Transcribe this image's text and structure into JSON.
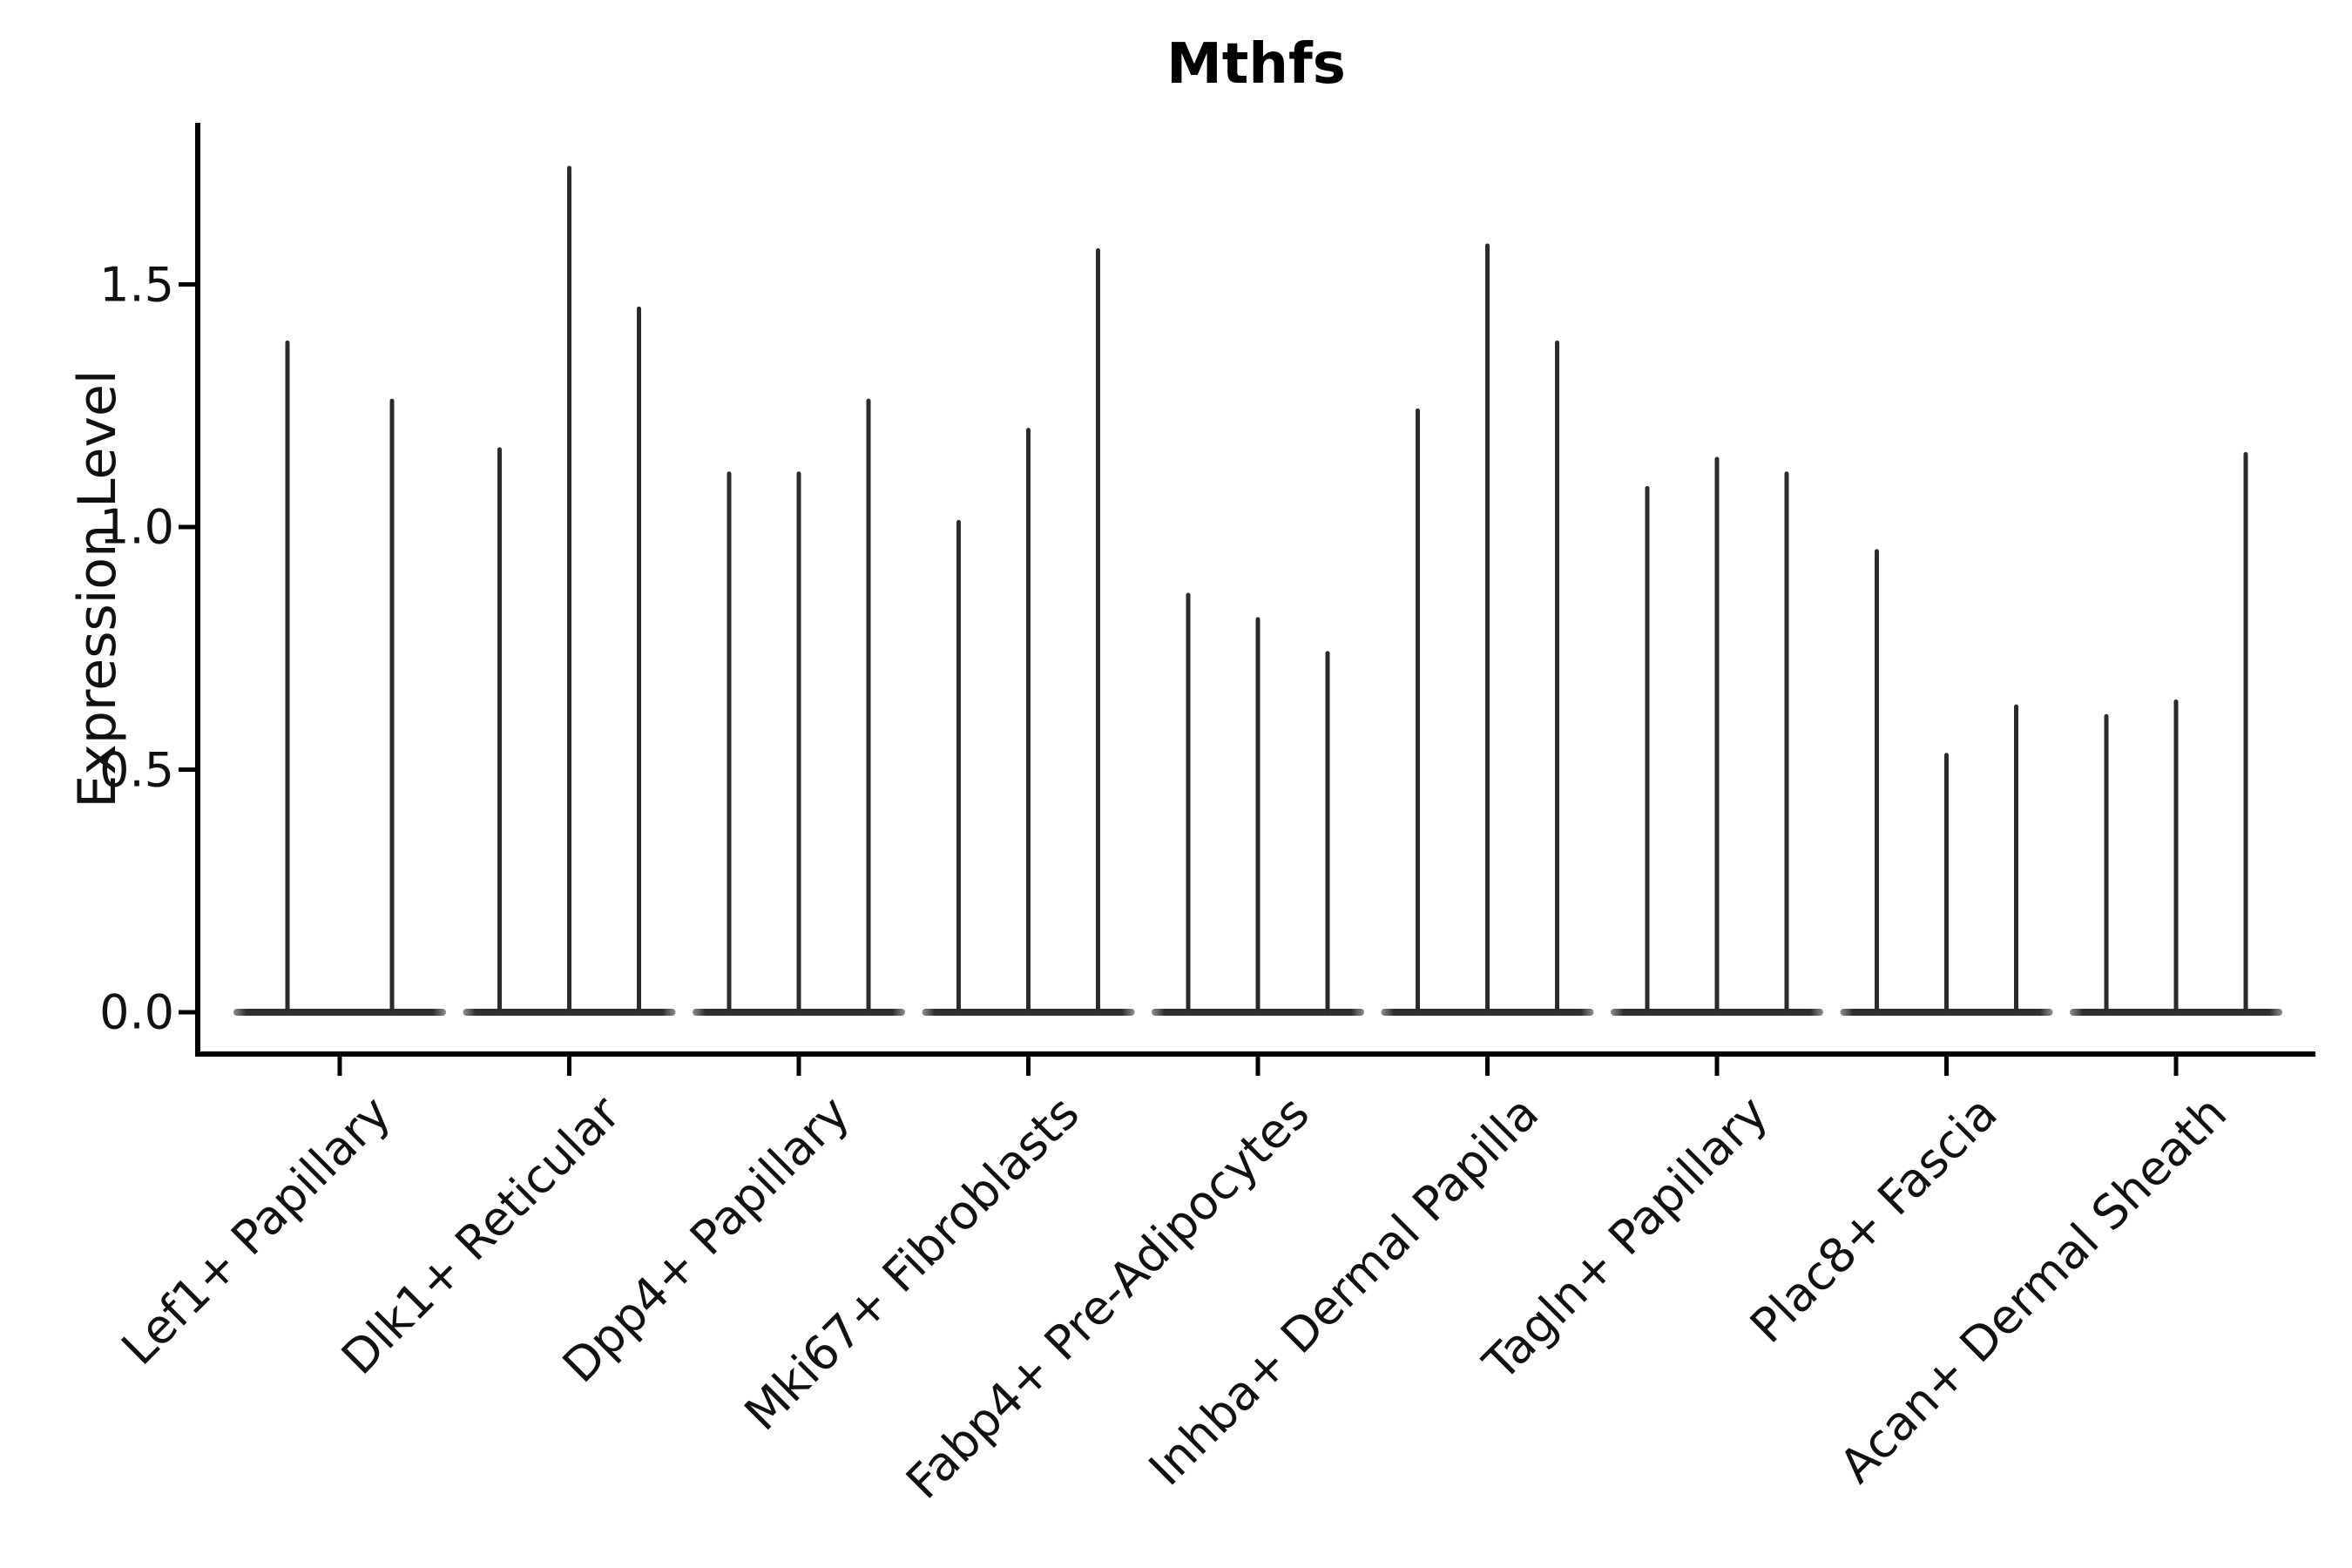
{
  "figure": {
    "title": "Mthfs",
    "background_color": "#ffffff",
    "axis_color": "#000000",
    "violin_color": "#2b2b2b",
    "violin_base_color": "#303030",
    "text_color": "#111111"
  },
  "chart_data": {
    "type": "violin",
    "title": "Mthfs",
    "xlabel": "",
    "ylabel": "Expression Level",
    "ylim": [
      0,
      1.8
    ],
    "yticks": [
      0.0,
      0.5,
      1.0,
      1.5
    ],
    "ytick_labels": [
      "0.0",
      "0.5",
      "1.0",
      "1.5"
    ],
    "grid": false,
    "legend": "none",
    "categories": [
      "Lef1+ Papillary",
      "Dlk1+ Reticular",
      "Dpp4+ Papillary",
      "Mki67+ Fibroblasts",
      "Fabp4+ Pre-Adipocytes",
      "Inhba+ Dermal Papilla",
      "Tagln+ Papillary",
      "Plac8+ Fascia",
      "Acan+ Dermal Sheath"
    ],
    "description": "Each group shows thin violins: dense mass at expression 0 (flat base bar) with a narrow spike up to the group's maximum expression value.",
    "groups": [
      {
        "label": "Lef1+ Papillary",
        "violins": [
          {
            "offset": -60,
            "max": 1.38
          },
          {
            "offset": 60,
            "max": 1.26
          }
        ]
      },
      {
        "label": "Dlk1+ Reticular",
        "violins": [
          {
            "offset": -80,
            "max": 1.16
          },
          {
            "offset": 0,
            "max": 1.74
          },
          {
            "offset": 80,
            "max": 1.45
          }
        ]
      },
      {
        "label": "Dpp4+ Papillary",
        "violins": [
          {
            "offset": -80,
            "max": 1.11
          },
          {
            "offset": 0,
            "max": 1.11
          },
          {
            "offset": 80,
            "max": 1.26
          }
        ]
      },
      {
        "label": "Mki67+ Fibroblasts",
        "violins": [
          {
            "offset": -80,
            "max": 1.01
          },
          {
            "offset": 0,
            "max": 1.2
          },
          {
            "offset": 80,
            "max": 1.57
          }
        ]
      },
      {
        "label": "Fabp4+ Pre-Adipocytes",
        "violins": [
          {
            "offset": -80,
            "max": 0.86
          },
          {
            "offset": 0,
            "max": 0.81
          },
          {
            "offset": 80,
            "max": 0.74
          }
        ]
      },
      {
        "label": "Inhba+ Dermal Papilla",
        "violins": [
          {
            "offset": -80,
            "max": 1.24
          },
          {
            "offset": 0,
            "max": 1.58
          },
          {
            "offset": 80,
            "max": 1.38
          }
        ]
      },
      {
        "label": "Tagln+ Papillary",
        "violins": [
          {
            "offset": -80,
            "max": 1.08
          },
          {
            "offset": 0,
            "max": 1.14
          },
          {
            "offset": 80,
            "max": 1.11
          }
        ]
      },
      {
        "label": "Plac8+ Fascia",
        "violins": [
          {
            "offset": -80,
            "max": 0.95
          },
          {
            "offset": 0,
            "max": 0.53
          },
          {
            "offset": 80,
            "max": 0.63
          }
        ]
      },
      {
        "label": "Acan+ Dermal Sheath",
        "violins": [
          {
            "offset": -80,
            "max": 0.61
          },
          {
            "offset": 0,
            "max": 0.64
          },
          {
            "offset": 80,
            "max": 1.15
          }
        ]
      }
    ]
  }
}
